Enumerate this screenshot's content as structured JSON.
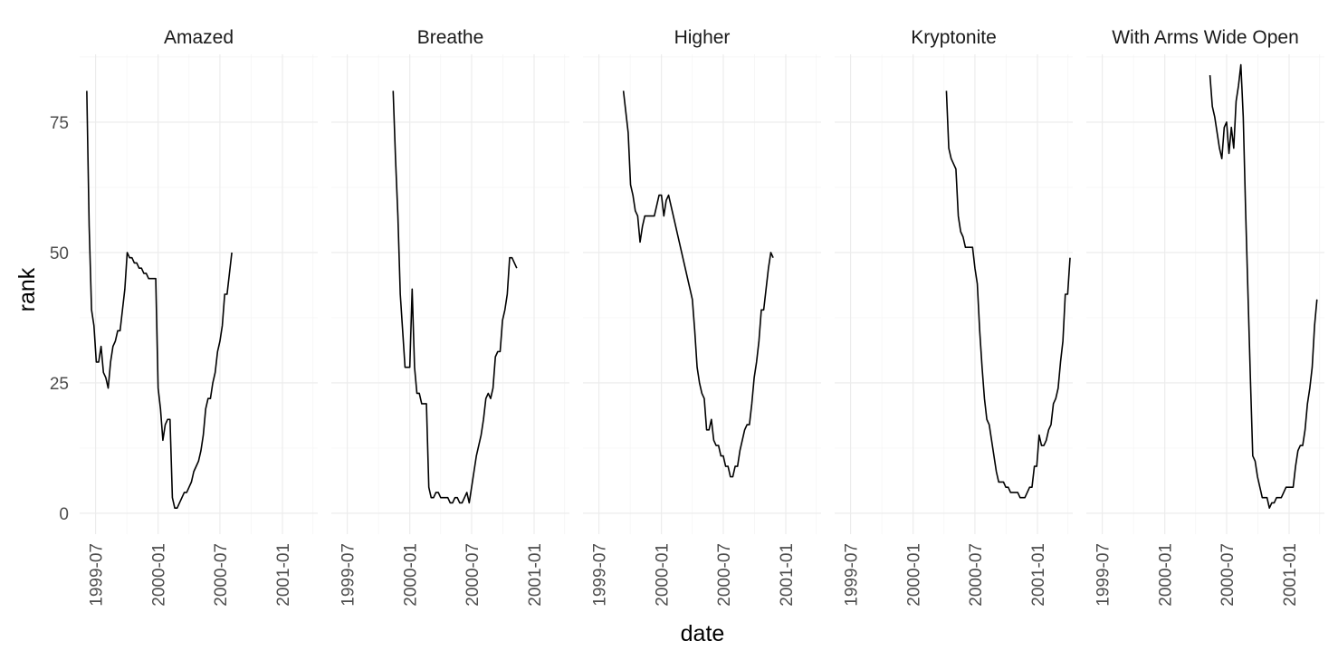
{
  "chart_data": {
    "type": "line",
    "facet_by": "track",
    "xlabel": "date",
    "ylabel": "rank",
    "x_ticks": [
      "1999-07",
      "2000-01",
      "2000-07",
      "2001-01"
    ],
    "y_ticks": [
      0,
      25,
      50,
      75
    ],
    "xlim": [
      "1999-05-15",
      "2001-04-15"
    ],
    "ylim": [
      -4,
      88
    ],
    "grid": true,
    "legend": "none",
    "line_color": "#000000",
    "panels": [
      {
        "title": "Amazed",
        "points": [
          [
            "1999-06-05",
            81
          ],
          [
            "1999-06-12",
            55
          ],
          [
            "1999-06-19",
            39
          ],
          [
            "1999-06-26",
            36
          ],
          [
            "1999-07-03",
            29
          ],
          [
            "1999-07-10",
            29
          ],
          [
            "1999-07-17",
            32
          ],
          [
            "1999-07-24",
            27
          ],
          [
            "1999-07-31",
            26
          ],
          [
            "1999-08-07",
            24
          ],
          [
            "1999-08-14",
            29
          ],
          [
            "1999-08-21",
            32
          ],
          [
            "1999-08-28",
            33
          ],
          [
            "1999-09-04",
            35
          ],
          [
            "1999-09-11",
            35
          ],
          [
            "1999-09-18",
            39
          ],
          [
            "1999-09-25",
            43
          ],
          [
            "1999-10-02",
            50
          ],
          [
            "1999-10-09",
            49
          ],
          [
            "1999-10-16",
            49
          ],
          [
            "1999-10-23",
            48
          ],
          [
            "1999-10-30",
            48
          ],
          [
            "1999-11-06",
            47
          ],
          [
            "1999-11-13",
            47
          ],
          [
            "1999-11-20",
            46
          ],
          [
            "1999-11-27",
            46
          ],
          [
            "1999-12-04",
            45
          ],
          [
            "1999-12-11",
            45
          ],
          [
            "1999-12-18",
            45
          ],
          [
            "1999-12-25",
            45
          ],
          [
            "2000-01-01",
            24
          ],
          [
            "2000-01-08",
            20
          ],
          [
            "2000-01-15",
            14
          ],
          [
            "2000-01-22",
            17
          ],
          [
            "2000-01-29",
            18
          ],
          [
            "2000-02-05",
            18
          ],
          [
            "2000-02-12",
            3
          ],
          [
            "2000-02-19",
            1
          ],
          [
            "2000-02-26",
            1
          ],
          [
            "2000-03-04",
            2
          ],
          [
            "2000-03-11",
            3
          ],
          [
            "2000-03-18",
            4
          ],
          [
            "2000-03-25",
            4
          ],
          [
            "2000-04-01",
            5
          ],
          [
            "2000-04-08",
            6
          ],
          [
            "2000-04-15",
            8
          ],
          [
            "2000-04-22",
            9
          ],
          [
            "2000-04-29",
            10
          ],
          [
            "2000-05-06",
            12
          ],
          [
            "2000-05-13",
            15
          ],
          [
            "2000-05-20",
            20
          ],
          [
            "2000-05-27",
            22
          ],
          [
            "2000-06-03",
            22
          ],
          [
            "2000-06-10",
            25
          ],
          [
            "2000-06-17",
            27
          ],
          [
            "2000-06-24",
            31
          ],
          [
            "2000-07-01",
            33
          ],
          [
            "2000-07-08",
            36
          ],
          [
            "2000-07-15",
            42
          ],
          [
            "2000-07-22",
            42
          ],
          [
            "2000-07-29",
            46
          ],
          [
            "2000-08-05",
            50
          ]
        ]
      },
      {
        "title": "Breathe",
        "points": [
          [
            "1999-11-13",
            81
          ],
          [
            "1999-11-20",
            68
          ],
          [
            "1999-11-27",
            57
          ],
          [
            "1999-12-04",
            42
          ],
          [
            "1999-12-11",
            35
          ],
          [
            "1999-12-18",
            28
          ],
          [
            "1999-12-25",
            28
          ],
          [
            "2000-01-01",
            28
          ],
          [
            "2000-01-08",
            43
          ],
          [
            "2000-01-15",
            28
          ],
          [
            "2000-01-22",
            23
          ],
          [
            "2000-01-29",
            23
          ],
          [
            "2000-02-05",
            21
          ],
          [
            "2000-02-12",
            21
          ],
          [
            "2000-02-19",
            21
          ],
          [
            "2000-02-26",
            5
          ],
          [
            "2000-03-04",
            3
          ],
          [
            "2000-03-11",
            3
          ],
          [
            "2000-03-18",
            4
          ],
          [
            "2000-03-25",
            4
          ],
          [
            "2000-04-01",
            3
          ],
          [
            "2000-04-08",
            3
          ],
          [
            "2000-04-15",
            3
          ],
          [
            "2000-04-22",
            3
          ],
          [
            "2000-04-29",
            2
          ],
          [
            "2000-05-06",
            2
          ],
          [
            "2000-05-13",
            3
          ],
          [
            "2000-05-20",
            3
          ],
          [
            "2000-05-27",
            2
          ],
          [
            "2000-06-03",
            2
          ],
          [
            "2000-06-10",
            3
          ],
          [
            "2000-06-17",
            4
          ],
          [
            "2000-06-24",
            2
          ],
          [
            "2000-07-01",
            5
          ],
          [
            "2000-07-08",
            8
          ],
          [
            "2000-07-15",
            11
          ],
          [
            "2000-07-22",
            13
          ],
          [
            "2000-07-29",
            15
          ],
          [
            "2000-08-05",
            18
          ],
          [
            "2000-08-12",
            22
          ],
          [
            "2000-08-19",
            23
          ],
          [
            "2000-08-26",
            22
          ],
          [
            "2000-09-02",
            24
          ],
          [
            "2000-09-09",
            30
          ],
          [
            "2000-09-16",
            31
          ],
          [
            "2000-09-23",
            31
          ],
          [
            "2000-09-30",
            37
          ],
          [
            "2000-10-07",
            39
          ],
          [
            "2000-10-14",
            42
          ],
          [
            "2000-10-21",
            49
          ],
          [
            "2000-10-28",
            49
          ],
          [
            "2000-11-04",
            48
          ],
          [
            "2000-11-11",
            47
          ]
        ]
      },
      {
        "title": "Higher",
        "points": [
          [
            "1999-09-11",
            81
          ],
          [
            "1999-09-18",
            77
          ],
          [
            "1999-09-25",
            73
          ],
          [
            "1999-10-02",
            63
          ],
          [
            "1999-10-09",
            61
          ],
          [
            "1999-10-16",
            58
          ],
          [
            "1999-10-23",
            57
          ],
          [
            "1999-10-30",
            52
          ],
          [
            "1999-11-06",
            55
          ],
          [
            "1999-11-13",
            57
          ],
          [
            "1999-11-20",
            57
          ],
          [
            "1999-11-27",
            57
          ],
          [
            "1999-12-04",
            57
          ],
          [
            "1999-12-11",
            57
          ],
          [
            "1999-12-18",
            59
          ],
          [
            "1999-12-25",
            61
          ],
          [
            "2000-01-01",
            61
          ],
          [
            "2000-01-08",
            57
          ],
          [
            "2000-01-15",
            60
          ],
          [
            "2000-01-22",
            61
          ],
          [
            "2000-01-29",
            59
          ],
          [
            "2000-02-05",
            57
          ],
          [
            "2000-02-12",
            55
          ],
          [
            "2000-02-19",
            53
          ],
          [
            "2000-02-26",
            51
          ],
          [
            "2000-03-04",
            49
          ],
          [
            "2000-03-11",
            47
          ],
          [
            "2000-03-18",
            45
          ],
          [
            "2000-03-25",
            43
          ],
          [
            "2000-04-01",
            41
          ],
          [
            "2000-04-08",
            35
          ],
          [
            "2000-04-15",
            28
          ],
          [
            "2000-04-22",
            25
          ],
          [
            "2000-04-29",
            23
          ],
          [
            "2000-05-06",
            22
          ],
          [
            "2000-05-13",
            16
          ],
          [
            "2000-05-20",
            16
          ],
          [
            "2000-05-27",
            18
          ],
          [
            "2000-06-03",
            14
          ],
          [
            "2000-06-10",
            13
          ],
          [
            "2000-06-17",
            13
          ],
          [
            "2000-06-24",
            11
          ],
          [
            "2000-07-01",
            11
          ],
          [
            "2000-07-08",
            9
          ],
          [
            "2000-07-15",
            9
          ],
          [
            "2000-07-22",
            7
          ],
          [
            "2000-07-29",
            7
          ],
          [
            "2000-08-05",
            9
          ],
          [
            "2000-08-12",
            9
          ],
          [
            "2000-08-19",
            12
          ],
          [
            "2000-08-26",
            14
          ],
          [
            "2000-09-02",
            16
          ],
          [
            "2000-09-09",
            17
          ],
          [
            "2000-09-16",
            17
          ],
          [
            "2000-09-23",
            21
          ],
          [
            "2000-09-30",
            26
          ],
          [
            "2000-10-07",
            29
          ],
          [
            "2000-10-14",
            33
          ],
          [
            "2000-10-21",
            39
          ],
          [
            "2000-10-28",
            39
          ],
          [
            "2000-11-04",
            43
          ],
          [
            "2000-11-11",
            47
          ],
          [
            "2000-11-18",
            50
          ],
          [
            "2000-11-25",
            49
          ]
        ]
      },
      {
        "title": "Kryptonite",
        "points": [
          [
            "2000-04-08",
            81
          ],
          [
            "2000-04-15",
            70
          ],
          [
            "2000-04-22",
            68
          ],
          [
            "2000-04-29",
            67
          ],
          [
            "2000-05-06",
            66
          ],
          [
            "2000-05-13",
            57
          ],
          [
            "2000-05-20",
            54
          ],
          [
            "2000-05-27",
            53
          ],
          [
            "2000-06-03",
            51
          ],
          [
            "2000-06-10",
            51
          ],
          [
            "2000-06-17",
            51
          ],
          [
            "2000-06-24",
            51
          ],
          [
            "2000-07-01",
            47
          ],
          [
            "2000-07-08",
            44
          ],
          [
            "2000-07-15",
            35
          ],
          [
            "2000-07-22",
            28
          ],
          [
            "2000-07-29",
            22
          ],
          [
            "2000-08-05",
            18
          ],
          [
            "2000-08-12",
            17
          ],
          [
            "2000-08-19",
            14
          ],
          [
            "2000-08-26",
            11
          ],
          [
            "2000-09-02",
            8
          ],
          [
            "2000-09-09",
            6
          ],
          [
            "2000-09-16",
            6
          ],
          [
            "2000-09-23",
            6
          ],
          [
            "2000-09-30",
            5
          ],
          [
            "2000-10-07",
            5
          ],
          [
            "2000-10-14",
            4
          ],
          [
            "2000-10-21",
            4
          ],
          [
            "2000-10-28",
            4
          ],
          [
            "2000-11-04",
            4
          ],
          [
            "2000-11-11",
            3
          ],
          [
            "2000-11-18",
            3
          ],
          [
            "2000-11-25",
            3
          ],
          [
            "2000-12-02",
            4
          ],
          [
            "2000-12-09",
            5
          ],
          [
            "2000-12-16",
            5
          ],
          [
            "2000-12-23",
            9
          ],
          [
            "2000-12-30",
            9
          ],
          [
            "2001-01-06",
            15
          ],
          [
            "2001-01-13",
            13
          ],
          [
            "2001-01-20",
            13
          ],
          [
            "2001-01-27",
            14
          ],
          [
            "2001-02-03",
            16
          ],
          [
            "2001-02-10",
            17
          ],
          [
            "2001-02-17",
            21
          ],
          [
            "2001-02-24",
            22
          ],
          [
            "2001-03-03",
            24
          ],
          [
            "2001-03-10",
            29
          ],
          [
            "2001-03-17",
            33
          ],
          [
            "2001-03-24",
            42
          ],
          [
            "2001-03-31",
            42
          ],
          [
            "2001-04-07",
            49
          ]
        ]
      },
      {
        "title": "With Arms Wide Open",
        "points": [
          [
            "2000-05-13",
            84
          ],
          [
            "2000-05-20",
            78
          ],
          [
            "2000-05-27",
            76
          ],
          [
            "2000-06-03",
            73
          ],
          [
            "2000-06-10",
            70
          ],
          [
            "2000-06-17",
            68
          ],
          [
            "2000-06-24",
            74
          ],
          [
            "2000-07-01",
            75
          ],
          [
            "2000-07-08",
            69
          ],
          [
            "2000-07-15",
            74
          ],
          [
            "2000-07-22",
            70
          ],
          [
            "2000-07-29",
            79
          ],
          [
            "2000-08-05",
            82
          ],
          [
            "2000-08-12",
            86
          ],
          [
            "2000-08-19",
            76
          ],
          [
            "2000-08-26",
            58
          ],
          [
            "2000-09-02",
            42
          ],
          [
            "2000-09-09",
            26
          ],
          [
            "2000-09-16",
            11
          ],
          [
            "2000-09-23",
            10
          ],
          [
            "2000-09-30",
            7
          ],
          [
            "2000-10-07",
            5
          ],
          [
            "2000-10-14",
            3
          ],
          [
            "2000-10-21",
            3
          ],
          [
            "2000-10-28",
            3
          ],
          [
            "2000-11-04",
            1
          ],
          [
            "2000-11-11",
            2
          ],
          [
            "2000-11-18",
            2
          ],
          [
            "2000-11-25",
            3
          ],
          [
            "2000-12-02",
            3
          ],
          [
            "2000-12-09",
            3
          ],
          [
            "2000-12-16",
            4
          ],
          [
            "2000-12-23",
            5
          ],
          [
            "2000-12-30",
            5
          ],
          [
            "2001-01-06",
            5
          ],
          [
            "2001-01-13",
            5
          ],
          [
            "2001-01-20",
            9
          ],
          [
            "2001-01-27",
            12
          ],
          [
            "2001-02-03",
            13
          ],
          [
            "2001-02-10",
            13
          ],
          [
            "2001-02-17",
            16
          ],
          [
            "2001-02-24",
            21
          ],
          [
            "2001-03-03",
            24
          ],
          [
            "2001-03-10",
            28
          ],
          [
            "2001-03-17",
            36
          ],
          [
            "2001-03-24",
            41
          ]
        ]
      }
    ]
  }
}
